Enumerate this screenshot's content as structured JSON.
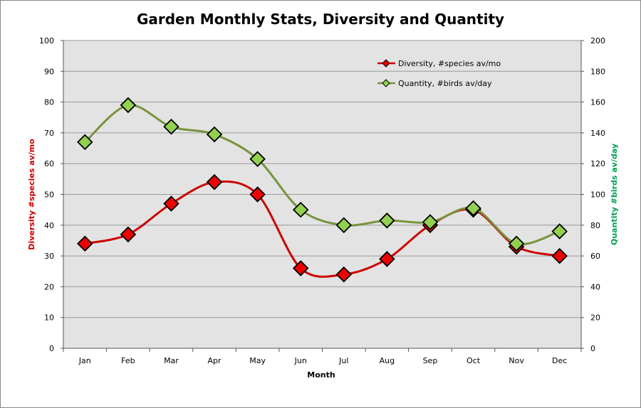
{
  "chart_data": {
    "type": "line",
    "title": "Garden Monthly Stats, Diversity and Quantity",
    "xlabel": "Month",
    "ylabel": "Diversity  #species av/mo",
    "y2label": "Quantity  #birds av/day",
    "categories": [
      "Jan",
      "Feb",
      "Mar",
      "Apr",
      "May",
      "Jun",
      "Jul",
      "Aug",
      "Sep",
      "Oct",
      "Nov",
      "Dec"
    ],
    "ylim": [
      0,
      100
    ],
    "y2lim": [
      0,
      200
    ],
    "yticks": [
      "0",
      "10",
      "20",
      "30",
      "40",
      "50",
      "60",
      "70",
      "80",
      "90",
      "100"
    ],
    "y2ticks": [
      "0",
      "20",
      "40",
      "60",
      "80",
      "100",
      "120",
      "140",
      "160",
      "180",
      "200"
    ],
    "grid": true,
    "legend_position": "top-right",
    "series": [
      {
        "name": "Diversity, #species av/mo",
        "axis": "left",
        "color": "#cc0000",
        "marker_color": "#ee0000",
        "values": [
          34,
          37,
          47,
          54,
          50,
          26,
          24,
          29,
          40,
          45,
          33,
          30
        ]
      },
      {
        "name": "Quantity, #birds av/day",
        "axis": "right",
        "color": "#77933c",
        "marker_color": "#92d050",
        "values": [
          134,
          158,
          144,
          139,
          123,
          90,
          80,
          83,
          82,
          91,
          68,
          76
        ]
      }
    ],
    "colors": {
      "plot_background": "#e3e3e3",
      "gridline": "#9a9a9a",
      "left_axis_title": "#cc0000",
      "right_axis_title": "#00a050"
    }
  }
}
